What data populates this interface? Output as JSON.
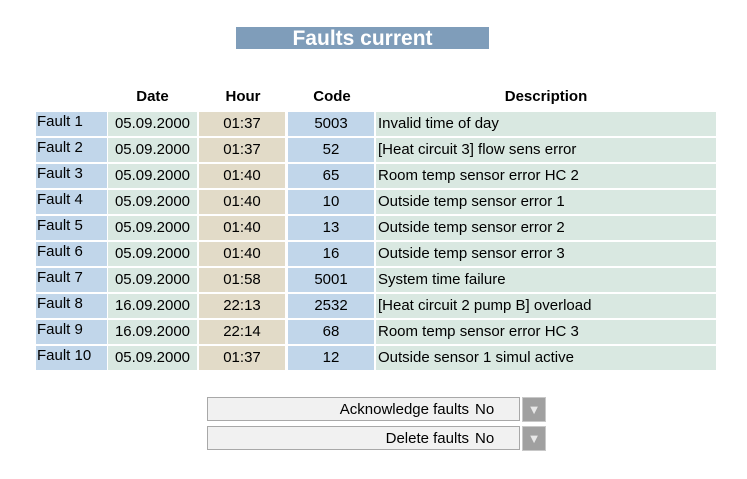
{
  "title": "Faults current",
  "headers": {
    "date": "Date",
    "hour": "Hour",
    "code": "Code",
    "description": "Description"
  },
  "faults": [
    {
      "label": "Fault 1",
      "date": "05.09.2000",
      "hour": "01:37",
      "code": "5003",
      "description": "Invalid time of day"
    },
    {
      "label": "Fault 2",
      "date": "05.09.2000",
      "hour": "01:37",
      "code": "52",
      "description": "[Heat circuit 3] flow sens error"
    },
    {
      "label": "Fault 3",
      "date": "05.09.2000",
      "hour": "01:40",
      "code": "65",
      "description": "Room temp sensor error HC 2"
    },
    {
      "label": "Fault 4",
      "date": "05.09.2000",
      "hour": "01:40",
      "code": "10",
      "description": "Outside temp sensor error 1"
    },
    {
      "label": "Fault 5",
      "date": "05.09.2000",
      "hour": "01:40",
      "code": "13",
      "description": "Outside temp sensor error 2"
    },
    {
      "label": "Fault 6",
      "date": "05.09.2000",
      "hour": "01:40",
      "code": "16",
      "description": "Outside temp sensor error 3"
    },
    {
      "label": "Fault 7",
      "date": "05.09.2000",
      "hour": "01:58",
      "code": "5001",
      "description": "System time failure"
    },
    {
      "label": "Fault 8",
      "date": "16.09.2000",
      "hour": "22:13",
      "code": "2532",
      "description": "[Heat circuit 2 pump B] overload"
    },
    {
      "label": "Fault 9",
      "date": "16.09.2000",
      "hour": "22:14",
      "code": "68",
      "description": "Room temp sensor error HC 3"
    },
    {
      "label": "Fault 10",
      "date": "05.09.2000",
      "hour": "01:37",
      "code": "12",
      "description": "Outside sensor 1 simul active"
    }
  ],
  "controls": [
    {
      "label": "Acknowledge faults",
      "value": "No",
      "icon": "triangle-down-icon"
    },
    {
      "label": "Delete faults",
      "value": "No",
      "icon": "triangle-down-icon"
    }
  ]
}
